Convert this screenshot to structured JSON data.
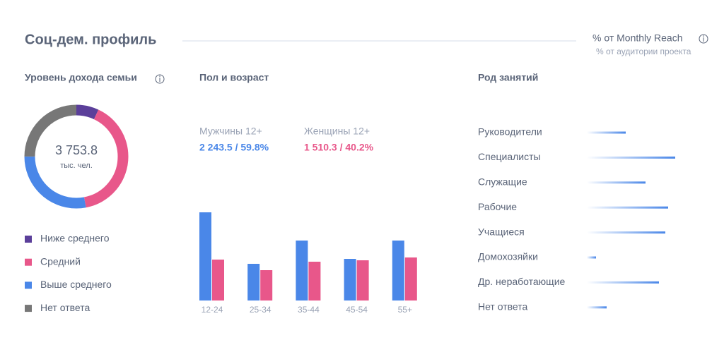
{
  "header": {
    "title": "Соц-дем. профиль",
    "metric": "% от Monthly Reach",
    "submetric": "% от аудитории проекта"
  },
  "chart_data": [
    {
      "type": "donut",
      "title": "Уровень дохода семьи",
      "center_value": "3 753.8",
      "center_unit": "тыс. чел.",
      "categories": [
        "Ниже среднего",
        "Средний",
        "Выше среднего",
        "Нет ответа"
      ],
      "values": [
        7,
        40,
        28,
        25
      ],
      "colors": [
        "#5b3f9a",
        "#e8578a",
        "#4a87e8",
        "#777777"
      ]
    },
    {
      "type": "grouped_bar",
      "title": "Пол и возраст",
      "categories": [
        "12-24",
        "25-34",
        "35-44",
        "45-54",
        "55+"
      ],
      "series": [
        {
          "name": "Мужчины 12+",
          "summary": "2 243.5 / 59.8%",
          "color": "#4a87e8",
          "values": [
            125,
            52,
            85,
            59,
            85
          ]
        },
        {
          "name": "Женщины 12+",
          "summary": "1 510.3 / 40.2%",
          "color": "#e8578a",
          "values": [
            58,
            43,
            55,
            57,
            61
          ]
        }
      ],
      "ylim": [
        0,
        130
      ]
    },
    {
      "type": "hbar",
      "title": "Род занятий",
      "categories": [
        "Руководители",
        "Специалисты",
        "Служащие",
        "Рабочие",
        "Учащиеся",
        "Домохозяйки",
        "Др. неработающие",
        "Нет ответа"
      ],
      "values": [
        55,
        125,
        83,
        115,
        111,
        13,
        102,
        28
      ],
      "color": "#4a87e8",
      "xlim": [
        0,
        150
      ]
    }
  ]
}
